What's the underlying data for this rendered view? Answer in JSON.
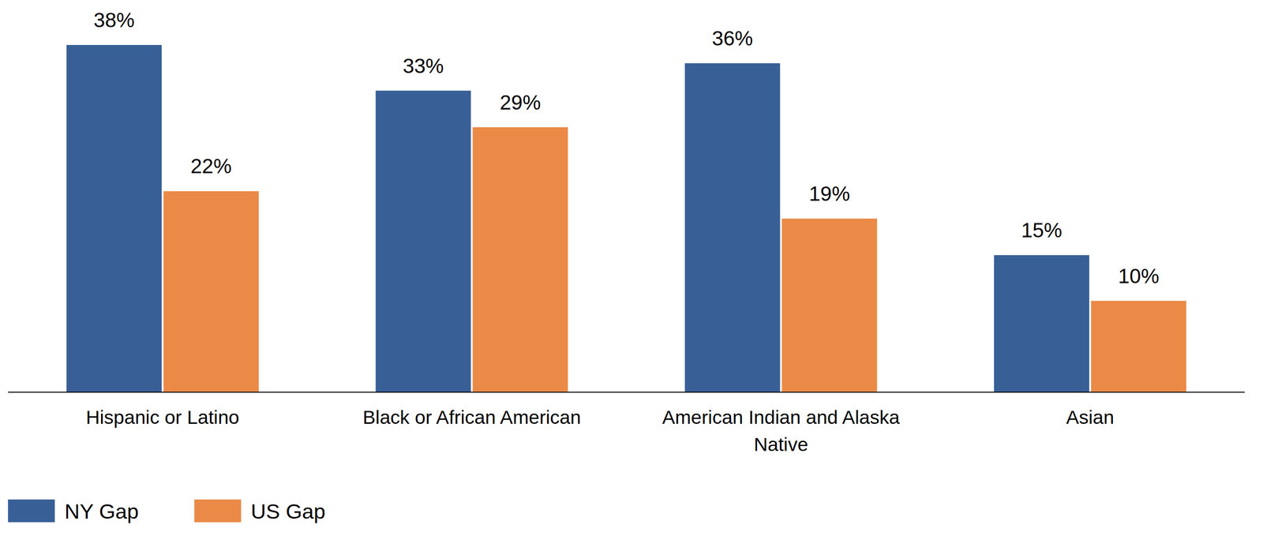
{
  "chart_data": {
    "type": "bar",
    "categories": [
      "Hispanic or Latino",
      "Black or African American",
      "American Indian and Alaska Native",
      "Asian"
    ],
    "series": [
      {
        "name": "NY Gap",
        "color": "#386097",
        "values": [
          38,
          33,
          36,
          15
        ],
        "value_labels": [
          "38%",
          "33%",
          "36%",
          "15%"
        ]
      },
      {
        "name": "US Gap",
        "color": "#eb8a47",
        "values": [
          22,
          29,
          19,
          10
        ],
        "value_labels": [
          "22%",
          "29%",
          "19%",
          "10%"
        ]
      }
    ],
    "ylim": [
      0,
      38
    ],
    "data_labels": true,
    "tick_labels": "x",
    "legend": "bottom-left"
  }
}
